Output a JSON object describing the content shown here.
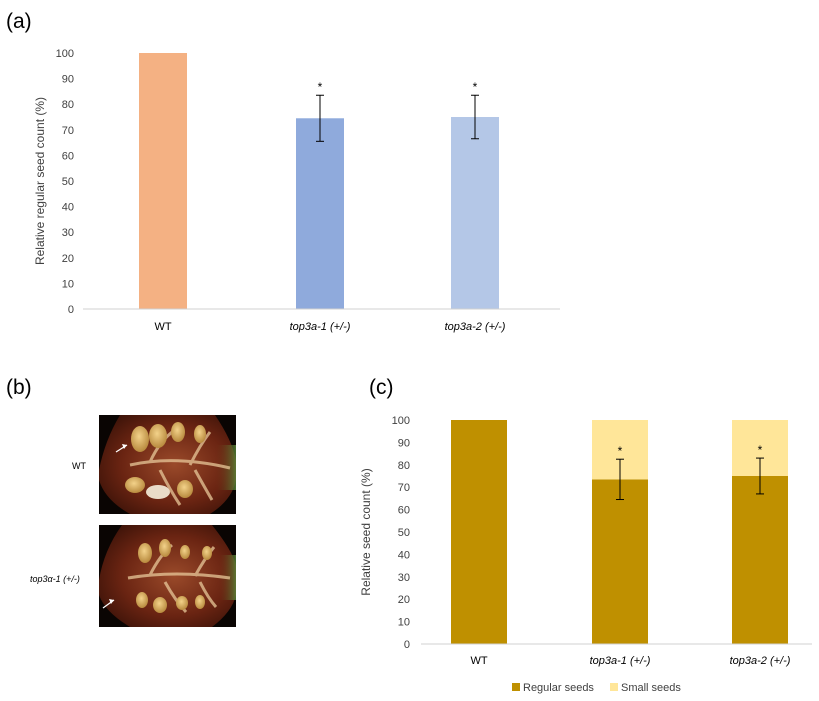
{
  "panels": {
    "a": "(a)",
    "b": "(b)",
    "c": "(c)"
  },
  "photos": {
    "labels": [
      "WT",
      "top3α-1 (+/-)"
    ]
  },
  "chart_data": [
    {
      "type": "bar",
      "panel": "(a)",
      "categories": [
        "WT",
        "top3a-1 (+/-)",
        "top3a-2 (+/-)"
      ],
      "values": [
        100,
        74.5,
        75
      ],
      "error": [
        null,
        9,
        8.5
      ],
      "significance": [
        "",
        "*",
        "*"
      ],
      "colors": [
        "#f4b183",
        "#8faadc",
        "#b4c7e7"
      ],
      "ylabel": "Relative regular seed count (%)",
      "ylim": [
        0,
        100
      ],
      "yticks": [
        0,
        10,
        20,
        30,
        40,
        50,
        60,
        70,
        80,
        90,
        100
      ],
      "grid": false
    },
    {
      "type": "bar",
      "stacked": true,
      "panel": "(c)",
      "categories": [
        "WT",
        "top3a-1 (+/-)",
        "top3a-2 (+/-)"
      ],
      "series": [
        {
          "name": "Regular seeds",
          "values": [
            100,
            73.5,
            75
          ],
          "color": "#bf9000"
        },
        {
          "name": "Small seeds",
          "values": [
            0,
            26.5,
            25
          ],
          "color": "#ffe699"
        }
      ],
      "error": [
        null,
        9,
        8
      ],
      "significance": [
        "",
        "*",
        "*"
      ],
      "ylabel": "Relative seed count (%)",
      "ylim": [
        0,
        100
      ],
      "yticks": [
        0,
        10,
        20,
        30,
        40,
        50,
        60,
        70,
        80,
        90,
        100
      ],
      "grid": false,
      "legend": "bottom"
    }
  ]
}
